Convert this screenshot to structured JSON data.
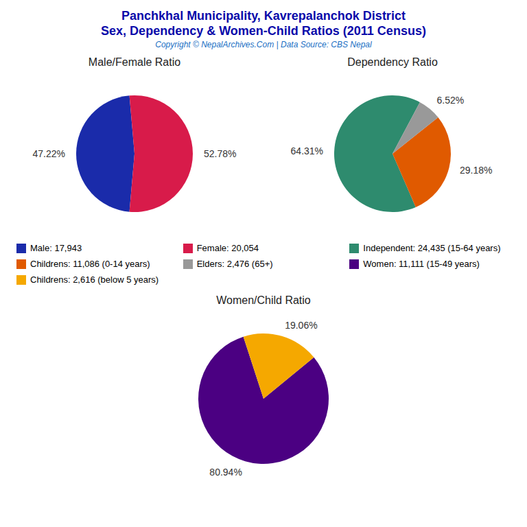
{
  "title": "Panchkhal Municipality, Kavrepalanchok District",
  "subtitle": "Sex, Dependency & Women-Child Ratios (2011 Census)",
  "annotations": [
    "Copyright © NepalArchives.Com | Data Source: CBS Nepal"
  ],
  "chart_data": [
    {
      "type": "pie",
      "title": "Male/Female Ratio",
      "categories": [
        "Male: 17,943",
        "Female: 20,054"
      ],
      "values": [
        47.22,
        52.78
      ],
      "value_labels": [
        "47.22%",
        "52.78%"
      ],
      "colors": [
        "#1a2baa",
        "#d81b4a"
      ],
      "data_labels": true
    },
    {
      "type": "pie",
      "title": "Dependency Ratio",
      "categories": [
        "Independent: 24,435 (15-64 years)",
        "Childrens: 11,086 (0-14 years)",
        "Elders: 2,476 (65+)"
      ],
      "values": [
        64.31,
        29.18,
        6.52
      ],
      "value_labels": [
        "64.31%",
        "29.18%",
        "6.52%"
      ],
      "colors": [
        "#2e8b6e",
        "#e05a00",
        "#999999"
      ],
      "data_labels": true
    },
    {
      "type": "pie",
      "title": "Women/Child Ratio",
      "categories": [
        "Women: 11,111 (15-49 years)",
        "Childrens: 2,616 (below 5 years)"
      ],
      "values": [
        80.94,
        19.06
      ],
      "value_labels": [
        "80.94%",
        "19.06%"
      ],
      "colors": [
        "#4b0082",
        "#f5a800"
      ],
      "data_labels": true
    }
  ]
}
